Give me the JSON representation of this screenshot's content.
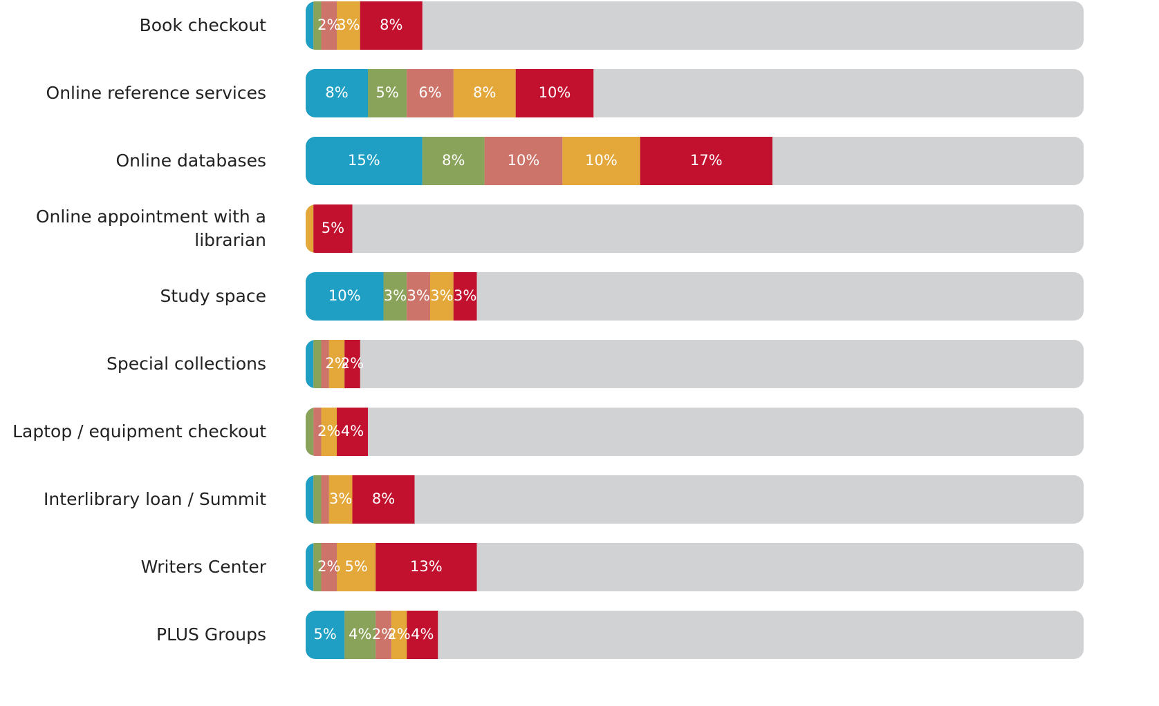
{
  "chart_data": {
    "type": "stacked-bar-horizontal",
    "categories": [
      "Book checkout",
      "Online reference services",
      "Online databases",
      "Online appointment with a librarian",
      "Study space",
      "Special collections",
      "Laptop / equipment checkout",
      "Interlibrary loan / Summit",
      "Writers Center",
      "PLUS Groups"
    ],
    "xlim": [
      0,
      100
    ],
    "track_color": "#d1d2d4",
    "series": [
      {
        "color": "#1f9fc4",
        "values": [
          1,
          8,
          15,
          0,
          10,
          1,
          0,
          1,
          1,
          5
        ],
        "value_labels": [
          null,
          "8%",
          "15%",
          null,
          "10%",
          null,
          null,
          null,
          null,
          "5%"
        ]
      },
      {
        "color": "#8aa35a",
        "values": [
          1,
          5,
          8,
          0,
          3,
          1,
          1,
          1,
          1,
          4
        ],
        "value_labels": [
          null,
          "5%",
          "8%",
          null,
          "3%",
          null,
          null,
          null,
          null,
          "4%"
        ]
      },
      {
        "color": "#cd746a",
        "values": [
          2,
          6,
          10,
          0,
          3,
          1,
          1,
          1,
          2,
          2
        ],
        "value_labels": [
          "2%",
          "6%",
          "10%",
          null,
          "3%",
          null,
          null,
          null,
          "2%",
          "2%"
        ]
      },
      {
        "color": "#e3a73a",
        "values": [
          3,
          8,
          10,
          1,
          3,
          2,
          2,
          3,
          5,
          2
        ],
        "value_labels": [
          "3%",
          "8%",
          "10%",
          null,
          "3%",
          "2%",
          "2%",
          "3%",
          "5%",
          "2%"
        ]
      },
      {
        "color": "#c2112f",
        "values": [
          8,
          10,
          17,
          5,
          3,
          2,
          4,
          8,
          13,
          4
        ],
        "value_labels": [
          "8%",
          "10%",
          "17%",
          "5%",
          "3%",
          "2%",
          "4%",
          "8%",
          "13%",
          "4%"
        ]
      }
    ]
  }
}
